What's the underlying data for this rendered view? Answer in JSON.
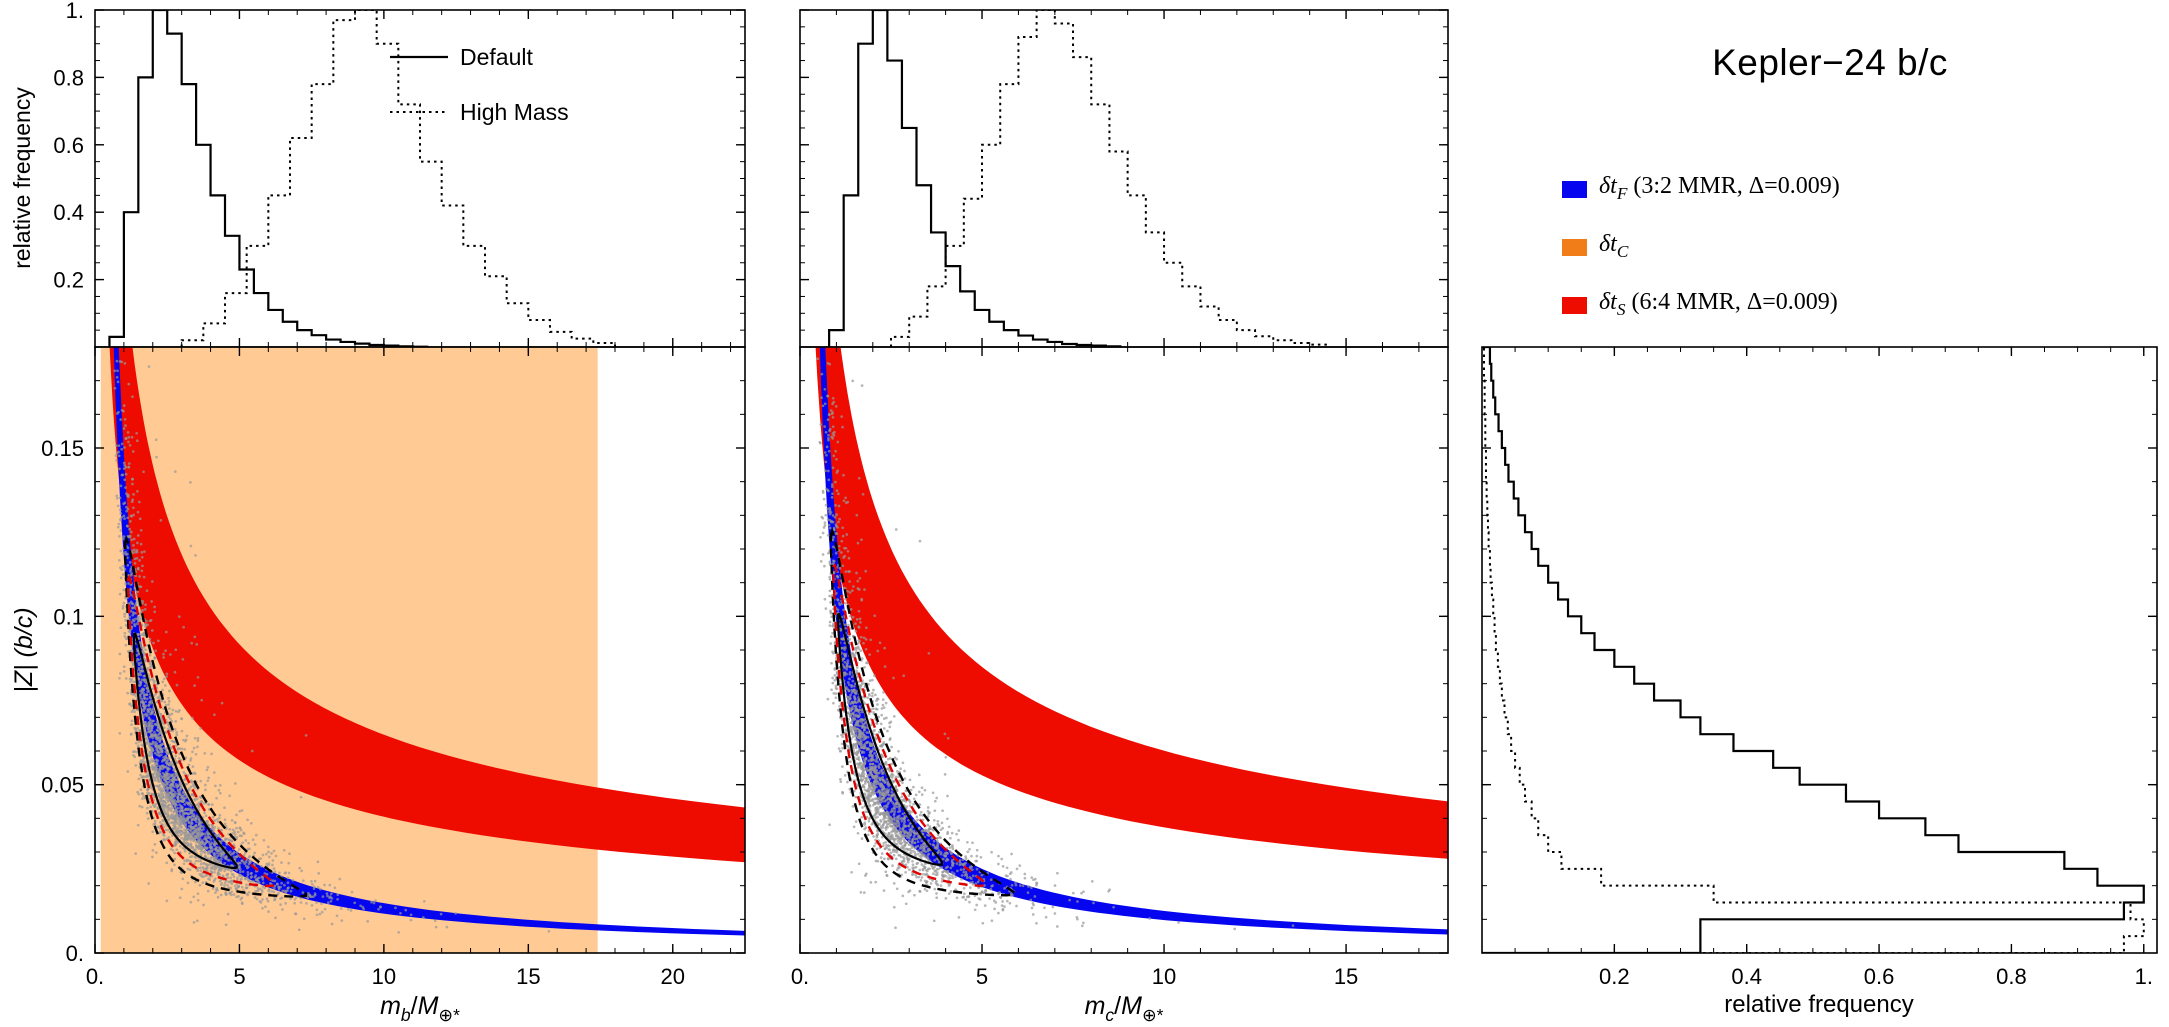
{
  "figure": {
    "title": "Kepler−24 b/c",
    "right_legend": {
      "items": [
        {
          "color": "#0505F0",
          "prefix": "δt",
          "sub": "F",
          "rest": " (3:2 MMR, Δ=0.009)"
        },
        {
          "color": "#F07D18",
          "prefix": "δt",
          "sub": "C",
          "rest": ""
        },
        {
          "color": "#EE0C00",
          "prefix": "δt",
          "sub": "S",
          "rest": " (6:4 MMR, Δ=0.009)"
        }
      ]
    }
  },
  "chart_data": [
    {
      "id": "hist-mb",
      "type": "histogram-step",
      "panel": "top-left",
      "ylabel": "relative frequency",
      "xlim": [
        0,
        22.5
      ],
      "ylim": [
        0,
        1.0
      ],
      "xticks": [
        5,
        10,
        15,
        20
      ],
      "yticks": [
        0.2,
        0.4,
        0.6,
        0.8,
        1.0
      ],
      "ytick_labels": [
        "0.2",
        "0.4",
        "0.6",
        "0.8",
        "1."
      ],
      "legend": [
        {
          "label": "Default",
          "line": "solid"
        },
        {
          "label": "High Mass",
          "line": "dashed"
        }
      ],
      "series": [
        {
          "name": "Default",
          "line": "solid",
          "bin_start": 0.5,
          "bin_width": 0.5,
          "values": [
            0.03,
            0.4,
            0.8,
            1.0,
            0.93,
            0.78,
            0.6,
            0.45,
            0.33,
            0.23,
            0.16,
            0.11,
            0.075,
            0.05,
            0.035,
            0.022,
            0.015,
            0.01,
            0.006,
            0.004,
            0.002,
            0.001
          ]
        },
        {
          "name": "High Mass",
          "line": "dashed",
          "bin_start": 3.0,
          "bin_width": 0.75,
          "values": [
            0.02,
            0.07,
            0.16,
            0.3,
            0.45,
            0.62,
            0.78,
            0.97,
            1.0,
            0.9,
            0.72,
            0.55,
            0.42,
            0.3,
            0.21,
            0.13,
            0.08,
            0.045,
            0.025,
            0.012
          ]
        }
      ]
    },
    {
      "id": "hist-mc",
      "type": "histogram-step",
      "panel": "top-middle",
      "xlim": [
        0,
        17.8
      ],
      "ylim": [
        0,
        1.0
      ],
      "xticks": [
        5,
        10,
        15
      ],
      "yticks": [
        0.2,
        0.4,
        0.6,
        0.8,
        1.0
      ],
      "series": [
        {
          "name": "Default",
          "line": "solid",
          "bin_start": 0.8,
          "bin_width": 0.4,
          "values": [
            0.05,
            0.45,
            0.9,
            1.0,
            0.85,
            0.65,
            0.48,
            0.34,
            0.24,
            0.165,
            0.11,
            0.075,
            0.05,
            0.034,
            0.022,
            0.015,
            0.009,
            0.006,
            0.004,
            0.002
          ]
        },
        {
          "name": "High Mass",
          "line": "dashed",
          "bin_start": 2.5,
          "bin_width": 0.5,
          "values": [
            0.03,
            0.09,
            0.18,
            0.3,
            0.44,
            0.6,
            0.78,
            0.92,
            1.0,
            0.96,
            0.86,
            0.72,
            0.58,
            0.45,
            0.34,
            0.25,
            0.18,
            0.12,
            0.08,
            0.05,
            0.032,
            0.02,
            0.012,
            0.007
          ]
        }
      ]
    },
    {
      "id": "scatter-mb-z",
      "type": "scatter",
      "panel": "bottom-left",
      "ylabel": "|Z| (b/c)",
      "xlabel_parts": [
        {
          "t": "m",
          "i": true
        },
        {
          "t": "b",
          "i": true,
          "sub": true
        },
        {
          "t": "/",
          "i": false
        },
        {
          "t": "M",
          "i": true
        },
        {
          "t": "⊕*",
          "i": false,
          "sub": true
        }
      ],
      "xlim": [
        0,
        22.5
      ],
      "ylim": [
        0,
        0.18
      ],
      "xticks": [
        0,
        5,
        10,
        15,
        20
      ],
      "xtick_labels": [
        "0.",
        "5",
        "10",
        "15",
        "20"
      ],
      "yticks": [
        0,
        0.05,
        0.1,
        0.15
      ],
      "ytick_labels": [
        "0.",
        "0.05",
        "0.1",
        "0.15"
      ],
      "regions": {
        "orange_rect": {
          "x0": 0.2,
          "x1": 17.4,
          "y0": 0,
          "y1": 0.18,
          "color": "#FF8000",
          "opacity": 0.42
        },
        "red_band": {
          "coef_top": 0.205,
          "coef_bot": 0.128,
          "power": 0.5,
          "x_start": 0.45,
          "color": "#EE0C00"
        },
        "blue_band": {
          "coef_top": 0.148,
          "coef_bot": 0.117,
          "power": 1.0,
          "x_start": 0.55,
          "color": "#0505F0"
        }
      },
      "cloud": {
        "n": 2800,
        "x_log_mean": 0.99,
        "x_log_sd": 0.52,
        "coef": 0.126,
        "y_log_sd": 0.21,
        "seed": 42,
        "color": "#999999"
      },
      "contours": [
        {
          "style": "solid",
          "color": "#000000",
          "coef": 0.126,
          "x_from": 1.35,
          "x_to": 4.9,
          "width_max": 0.22
        },
        {
          "style": "dashed",
          "color": "#000000",
          "coef": 0.126,
          "x_from": 1.05,
          "x_to": 7.3,
          "width_max": 0.4
        },
        {
          "style": "dashed",
          "color": "#E00000",
          "coef": 0.126,
          "x_from": 1.15,
          "x_to": 6.2,
          "width_max": 0.31
        }
      ]
    },
    {
      "id": "scatter-mc-z",
      "type": "scatter",
      "panel": "bottom-middle",
      "xlabel_parts": [
        {
          "t": "m",
          "i": true
        },
        {
          "t": "c",
          "i": true,
          "sub": true
        },
        {
          "t": "/",
          "i": false
        },
        {
          "t": "M",
          "i": true
        },
        {
          "t": "⊕*",
          "i": false,
          "sub": true
        }
      ],
      "xlim": [
        0,
        17.8
      ],
      "ylim": [
        0,
        0.18
      ],
      "xticks": [
        0,
        5,
        10,
        15
      ],
      "xtick_labels": [
        "0.",
        "5",
        "10",
        "15"
      ],
      "yticks": [
        0,
        0.05,
        0.1,
        0.15
      ],
      "regions": {
        "red_band": {
          "coef_top": 0.19,
          "coef_bot": 0.118,
          "power": 0.5,
          "x_start": 0.4,
          "color": "#EE0C00"
        },
        "blue_band": {
          "coef_top": 0.125,
          "coef_bot": 0.098,
          "power": 1.0,
          "x_start": 0.45,
          "color": "#0505F0"
        }
      },
      "cloud": {
        "n": 2400,
        "x_log_mean": 0.74,
        "x_log_sd": 0.52,
        "coef": 0.104,
        "y_log_sd": 0.21,
        "seed": 77,
        "color": "#999999"
      },
      "contours": [
        {
          "style": "solid",
          "color": "#000000",
          "coef": 0.104,
          "x_from": 1.05,
          "x_to": 3.9,
          "width_max": 0.22
        },
        {
          "style": "dashed",
          "color": "#000000",
          "coef": 0.104,
          "x_from": 0.85,
          "x_to": 5.9,
          "width_max": 0.4
        },
        {
          "style": "dashed",
          "color": "#E00000",
          "coef": 0.104,
          "x_from": 0.92,
          "x_to": 5.1,
          "width_max": 0.31
        }
      ]
    },
    {
      "id": "hist-absZ",
      "type": "histogram-step-horizontal",
      "panel": "bottom-right",
      "xlabel": "relative frequency",
      "xlim": [
        0,
        1.02
      ],
      "ylim": [
        0,
        0.18
      ],
      "xticks": [
        0.2,
        0.4,
        0.6,
        0.8,
        1.0
      ],
      "xtick_labels": [
        "0.2",
        "0.4",
        "0.6",
        "0.8",
        "1."
      ],
      "yticks": [
        0.05,
        0.1,
        0.15
      ],
      "series": [
        {
          "name": "Default",
          "line": "solid",
          "bin_start": 0,
          "bin_width": 0.005,
          "values": [
            0.33,
            0.33,
            0.97,
            1.0,
            0.93,
            0.88,
            0.72,
            0.67,
            0.6,
            0.55,
            0.48,
            0.44,
            0.38,
            0.33,
            0.3,
            0.26,
            0.23,
            0.2,
            0.17,
            0.15,
            0.13,
            0.115,
            0.1,
            0.085,
            0.075,
            0.065,
            0.055,
            0.048,
            0.04,
            0.035,
            0.03,
            0.025,
            0.02,
            0.017,
            0.014,
            0.012
          ]
        },
        {
          "name": "High Mass",
          "line": "dashed",
          "bin_start": 0,
          "bin_width": 0.005,
          "values": [
            0.97,
            1.0,
            0.98,
            0.35,
            0.18,
            0.12,
            0.1,
            0.085,
            0.075,
            0.065,
            0.057,
            0.05,
            0.044,
            0.039,
            0.034,
            0.03,
            0.027,
            0.024,
            0.021,
            0.019,
            0.017,
            0.015,
            0.013,
            0.012,
            0.01,
            0.009,
            0.008,
            0.007,
            0.006,
            0.006,
            0.005,
            0.005,
            0.004,
            0.004,
            0.003,
            0.003
          ]
        }
      ]
    }
  ]
}
